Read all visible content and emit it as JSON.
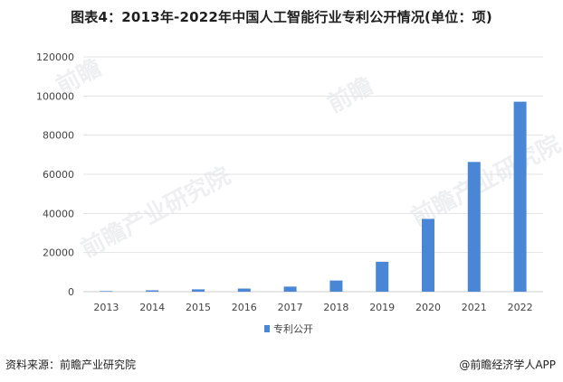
{
  "title": "图表4：2013年-2022年中国人工智能行业专利公开情况(单位：项)",
  "chart_data": {
    "type": "bar",
    "categories": [
      "2013",
      "2014",
      "2015",
      "2016",
      "2017",
      "2018",
      "2019",
      "2020",
      "2021",
      "2022"
    ],
    "series": [
      {
        "name": "专利公开",
        "values": [
          300,
          700,
          1200,
          1600,
          2600,
          5700,
          15300,
          37200,
          66300,
          97100
        ],
        "color": "#4a86d6"
      }
    ],
    "ylim": [
      0,
      120000
    ],
    "yticks": [
      0,
      20000,
      40000,
      60000,
      80000,
      100000,
      120000
    ],
    "grid": true,
    "legend_position": "bottom-center"
  },
  "watermarks": [
    "前瞻产业研究院",
    "前瞻产业研究院",
    "前瞻",
    "前瞻"
  ],
  "footer": {
    "source": "资料来源：前瞻产业研究院",
    "brand": "@前瞻经济学人APP"
  }
}
